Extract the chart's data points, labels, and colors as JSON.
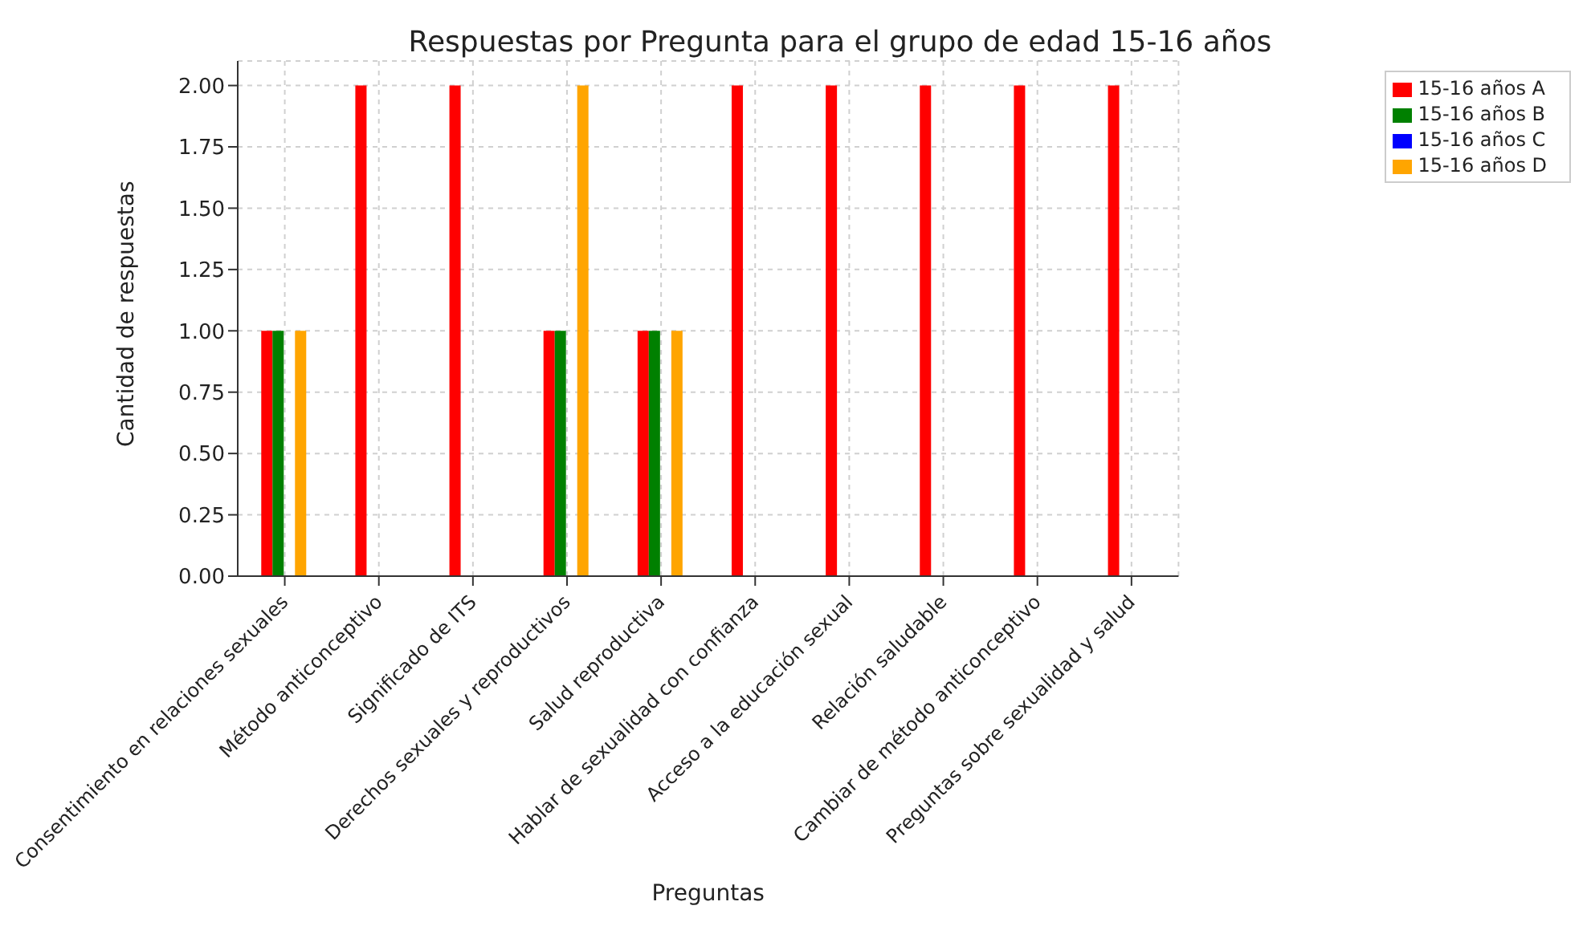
{
  "chart_data": {
    "type": "bar",
    "title": "Respuestas por Pregunta para el grupo de edad 15-16 años",
    "xlabel": "Preguntas",
    "ylabel": "Cantidad de respuestas",
    "categories": [
      "Consentimiento en relaciones sexuales",
      "Método anticonceptivo",
      "Significado de ITS",
      "Derechos sexuales y reproductivos",
      "Salud reproductiva",
      "Hablar de sexualidad con confianza",
      "Acceso a la educación sexual",
      "Relación saludable",
      "Cambiar de método anticonceptivo",
      "Preguntas sobre sexualidad y salud"
    ],
    "series": [
      {
        "name": "15-16 años A",
        "color": "#ff0000",
        "values": [
          1,
          2,
          2,
          1,
          1,
          2,
          2,
          2,
          2,
          2
        ]
      },
      {
        "name": "15-16 años B",
        "color": "#008000",
        "values": [
          1,
          0,
          0,
          1,
          1,
          0,
          0,
          0,
          0,
          0
        ]
      },
      {
        "name": "15-16 años C",
        "color": "#0000ff",
        "values": [
          0,
          0,
          0,
          0,
          0,
          0,
          0,
          0,
          0,
          0
        ]
      },
      {
        "name": "15-16 años D",
        "color": "#ffa500",
        "values": [
          1,
          0,
          0,
          2,
          1,
          0,
          0,
          0,
          0,
          0
        ]
      }
    ],
    "ylim": [
      0,
      2.1
    ],
    "yticks": [
      {
        "value": 0,
        "label": "0.00"
      },
      {
        "value": 0.25,
        "label": "0.25"
      },
      {
        "value": 0.5,
        "label": "0.50"
      },
      {
        "value": 0.75,
        "label": "0.75"
      },
      {
        "value": 1,
        "label": "1.00"
      },
      {
        "value": 1.25,
        "label": "1.25"
      },
      {
        "value": 1.5,
        "label": "1.50"
      },
      {
        "value": 1.75,
        "label": "1.75"
      },
      {
        "value": 2,
        "label": "2.00"
      }
    ],
    "grid": true,
    "legend": "top right"
  }
}
